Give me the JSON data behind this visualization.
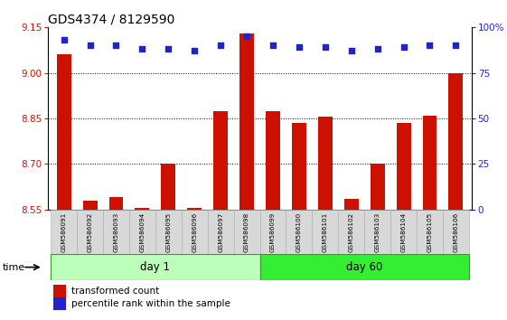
{
  "title": "GDS4374 / 8129590",
  "samples": [
    "GSM586091",
    "GSM586092",
    "GSM586093",
    "GSM586094",
    "GSM586095",
    "GSM586096",
    "GSM586097",
    "GSM586098",
    "GSM586099",
    "GSM586100",
    "GSM586101",
    "GSM586102",
    "GSM586103",
    "GSM586104",
    "GSM586105",
    "GSM586106"
  ],
  "bar_values": [
    9.06,
    8.58,
    8.59,
    8.555,
    8.7,
    8.555,
    8.875,
    9.13,
    8.875,
    8.835,
    8.855,
    8.585,
    8.7,
    8.835,
    8.86,
    9.0
  ],
  "dot_values": [
    93,
    90,
    90,
    88,
    88,
    87,
    90,
    95,
    90,
    89,
    89,
    87,
    88,
    89,
    90,
    90
  ],
  "bar_color": "#cc1100",
  "dot_color": "#2222cc",
  "ylim_left": [
    8.55,
    9.15
  ],
  "ylim_right": [
    0,
    100
  ],
  "yticks_left": [
    8.55,
    8.7,
    8.85,
    9.0,
    9.15
  ],
  "yticks_right": [
    0,
    25,
    50,
    75,
    100
  ],
  "ytick_labels_right": [
    "0",
    "25",
    "50",
    "75",
    "100%"
  ],
  "grid_values": [
    9.0,
    8.85,
    8.7
  ],
  "day1_samples": 8,
  "day60_samples": 8,
  "day1_label": "day 1",
  "day60_label": "day 60",
  "day1_color": "#bbffbb",
  "day60_color": "#33ee33",
  "time_label": "time",
  "legend_bar_label": "transformed count",
  "legend_dot_label": "percentile rank within the sample",
  "bar_bottom": 8.55,
  "ylabel_left_color": "#cc1100",
  "ylabel_right_color": "#2222cc",
  "title_fontsize": 10,
  "label_cell_color": "#d8d8d8",
  "label_cell_edge": "#aaaaaa"
}
